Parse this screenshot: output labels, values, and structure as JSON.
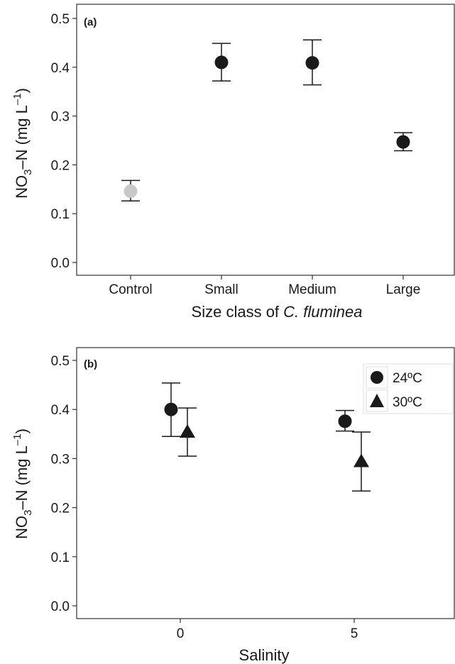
{
  "chart_data": [
    {
      "type": "scatter",
      "panel_label": "(a)",
      "categories": [
        "Control",
        "Small",
        "Medium",
        "Large"
      ],
      "values": [
        0.146,
        0.41,
        0.409,
        0.247
      ],
      "err_low": [
        0.126,
        0.372,
        0.364,
        0.229
      ],
      "err_high": [
        0.168,
        0.449,
        0.456,
        0.266
      ],
      "point_colors": [
        "#c8c8c8",
        "#1a1a1a",
        "#1a1a1a",
        "#1a1a1a"
      ],
      "ylabel_main": "NO",
      "ylabel_sub": "3",
      "ylabel_mid": "–N (mg L",
      "ylabel_sup": "–1",
      "ylabel_end": ")",
      "xlabel_prefix": "Size class of ",
      "xlabel_italic": "C. fluminea",
      "ylim": [
        0.0,
        0.5
      ],
      "yticks": [
        "0.0",
        "0.1",
        "0.2",
        "0.3",
        "0.4",
        "0.5"
      ],
      "grid": false
    },
    {
      "type": "scatter",
      "panel_label": "(b)",
      "x_ticks": [
        "0",
        "5"
      ],
      "series": [
        {
          "name": "24ºC",
          "marker": "circle",
          "values": [
            0.4,
            0.376
          ],
          "err_low": [
            0.345,
            0.356
          ],
          "err_high": [
            0.454,
            0.398
          ]
        },
        {
          "name": "30ºC",
          "marker": "triangle",
          "values": [
            0.354,
            0.294
          ],
          "err_low": [
            0.305,
            0.234
          ],
          "err_high": [
            0.403,
            0.354
          ]
        }
      ],
      "ylabel_main": "NO",
      "ylabel_sub": "3",
      "ylabel_mid": "–N (mg L",
      "ylabel_sup": "–1",
      "ylabel_end": ")",
      "xlabel": "Salinity",
      "ylim": [
        0.0,
        0.5
      ],
      "yticks": [
        "0.0",
        "0.1",
        "0.2",
        "0.3",
        "0.4",
        "0.5"
      ],
      "legend_position": "top-right",
      "grid": false,
      "colors": {
        "points": "#1a1a1a"
      }
    }
  ]
}
